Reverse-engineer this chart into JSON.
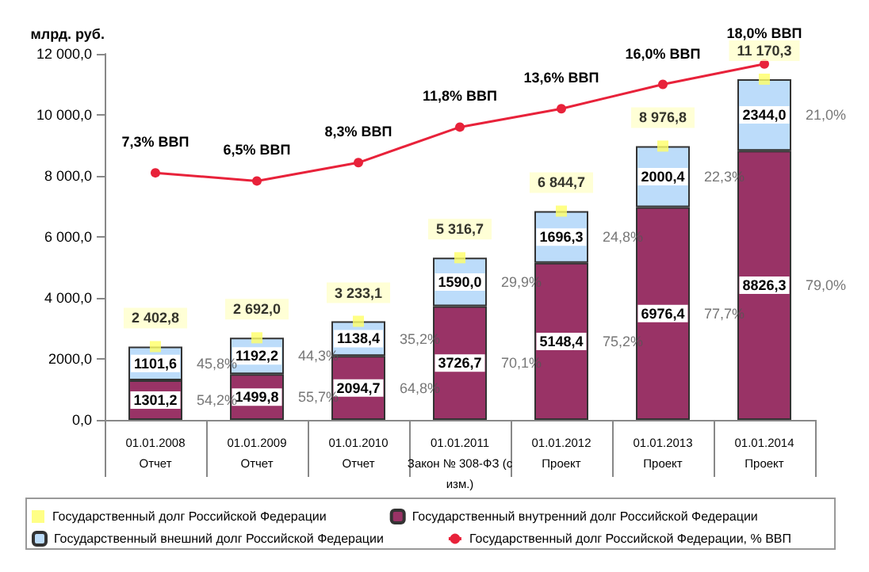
{
  "chart_data": {
    "type": "bar",
    "stacked": true,
    "ylabel": "млрд. руб.",
    "categories": [
      "01.01.2008\nОтчет",
      "01.01.2009\nОтчет",
      "01.01.2010\nОтчет",
      "01.01.2011\nЗакон № 308-ФЗ (с\nизм.)",
      "01.01.2012\nПроект",
      "01.01.2013\nПроект",
      "01.01.2014\nПроект"
    ],
    "series": [
      {
        "name": "Государственный внутренний долг Российской Федерации",
        "color": "#993366",
        "values": [
          1301.2,
          1499.8,
          2094.7,
          3726.7,
          5148.4,
          6976.4,
          8826.3
        ],
        "value_labels": [
          "1301,2",
          "1499,8",
          "2094,7",
          "3726,7",
          "5148,4",
          "6976,4",
          "8826,3"
        ]
      },
      {
        "name": "Государственный внешний долг Российской Федерации",
        "color": "#bcdcfa",
        "values": [
          1101.6,
          1192.2,
          1138.4,
          1590.0,
          1696.3,
          2000.4,
          2344.0
        ],
        "value_labels": [
          "1101,6",
          "1192,2",
          "1138,4",
          "1590,0",
          "1696,3",
          "2000,4",
          "2344,0"
        ]
      },
      {
        "name": "Государственный долг Российской Федерации",
        "type": "scatter",
        "marker": "square",
        "color": "#ffff66",
        "values": [
          2402.8,
          2692.0,
          3233.1,
          5316.7,
          6844.7,
          8976.8,
          11170.3
        ],
        "value_labels": [
          "2 402,8",
          "2 692,0",
          "3 233,1",
          "5 316,7",
          "6 844,7",
          "8 976,8",
          "11 170,3"
        ]
      },
      {
        "name": "Государственный долг Российской Федерации, % ВВП",
        "type": "line",
        "axis": "y2",
        "marker": "circle",
        "color": "#e8223a",
        "values": [
          7.3,
          6.5,
          8.3,
          11.8,
          13.6,
          16.0,
          18.0
        ],
        "value_labels": [
          "7,3% ВВП",
          "6,5% ВВП",
          "8,3% ВВП",
          "11,8% ВВП",
          "13,6% ВВП",
          "16,0% ВВП",
          "18,0% ВВП"
        ]
      }
    ],
    "ylim": [
      0,
      12000
    ],
    "yticks": [
      {
        "value": 0,
        "label": "0,0"
      },
      {
        "value": 2000,
        "label": "2000,0"
      },
      {
        "value": 4000,
        "label": "4 000,0"
      },
      {
        "value": 6000,
        "label": "6 000,0"
      },
      {
        "value": 8000,
        "label": "8 000,0"
      },
      {
        "value": 10000,
        "label": "10 000,0"
      },
      {
        "value": 12000,
        "label": "12 000,0"
      }
    ],
    "y2lim": [
      -17,
      19
    ],
    "grid": false,
    "legend": "bottom",
    "annotations": [
      {
        "text": "54,2%",
        "x": "01.01.2008\nОтчет",
        "y": 650
      },
      {
        "text": "45,8%",
        "x": "01.01.2008\nОтчет",
        "y": 1850
      },
      {
        "text": "55,7%",
        "x": "01.01.2009\nОтчет",
        "y": 750
      },
      {
        "text": "44,3%",
        "x": "01.01.2009\nОтчет",
        "y": 2100
      },
      {
        "text": "64,8%",
        "x": "01.01.2010\nОтчет",
        "y": 1050
      },
      {
        "text": "35,2%",
        "x": "01.01.2010\nОтчет",
        "y": 2660
      },
      {
        "text": "70,1%",
        "x": "01.01.2011\nЗакон № 308-ФЗ (с\nизм.)",
        "y": 1860
      },
      {
        "text": "29,9%",
        "x": "01.01.2011\nЗакон № 308-ФЗ (с\nизм.)",
        "y": 4520
      },
      {
        "text": "75,2%",
        "x": "01.01.2012\nПроект",
        "y": 2570
      },
      {
        "text": "24,8%",
        "x": "01.01.2012\nПроект",
        "y": 6000
      },
      {
        "text": "77,7%",
        "x": "01.01.2013\nПроект",
        "y": 3490
      },
      {
        "text": "22,3%",
        "x": "01.01.2013\nПроект",
        "y": 7980
      },
      {
        "text": "79,0%",
        "x": "01.01.2014\nПроект",
        "y": 4410
      },
      {
        "text": "21,0%",
        "x": "01.01.2014\nПроект",
        "y": 10000
      }
    ]
  }
}
